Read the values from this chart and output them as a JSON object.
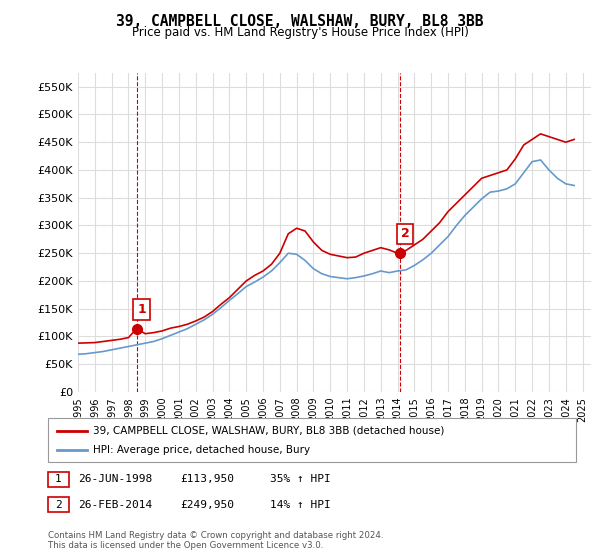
{
  "title": "39, CAMPBELL CLOSE, WALSHAW, BURY, BL8 3BB",
  "subtitle": "Price paid vs. HM Land Registry's House Price Index (HPI)",
  "legend_line1": "39, CAMPBELL CLOSE, WALSHAW, BURY, BL8 3BB (detached house)",
  "legend_line2": "HPI: Average price, detached house, Bury",
  "sale1_label": "1",
  "sale1_date": "26-JUN-1998",
  "sale1_price": "£113,950",
  "sale1_hpi": "35% ↑ HPI",
  "sale2_label": "2",
  "sale2_date": "26-FEB-2014",
  "sale2_price": "£249,950",
  "sale2_hpi": "14% ↑ HPI",
  "footnote": "Contains HM Land Registry data © Crown copyright and database right 2024.\nThis data is licensed under the Open Government Licence v3.0.",
  "red_color": "#cc0000",
  "blue_color": "#6699cc",
  "dashed_red": "#cc0000",
  "background_color": "#ffffff",
  "grid_color": "#dddddd",
  "ylim": [
    0,
    575000
  ],
  "yticks": [
    0,
    50000,
    100000,
    150000,
    200000,
    250000,
    300000,
    350000,
    400000,
    450000,
    500000,
    550000
  ],
  "ytick_labels": [
    "£0",
    "£50K",
    "£100K",
    "£150K",
    "£200K",
    "£250K",
    "£300K",
    "£350K",
    "£400K",
    "£450K",
    "£500K",
    "£550K"
  ],
  "xticks": [
    1995,
    1996,
    1997,
    1998,
    1999,
    2000,
    2001,
    2002,
    2003,
    2004,
    2005,
    2006,
    2007,
    2008,
    2009,
    2010,
    2011,
    2012,
    2013,
    2014,
    2015,
    2016,
    2017,
    2018,
    2019,
    2020,
    2021,
    2022,
    2023,
    2024,
    2025
  ],
  "sale1_x": 1998.48,
  "sale1_y": 113950,
  "sale2_x": 2014.15,
  "sale2_y": 249950,
  "red_line_x": [
    1995,
    1995.5,
    1996,
    1996.5,
    1997,
    1997.5,
    1998,
    1998.48,
    1999,
    1999.5,
    2000,
    2000.5,
    2001,
    2001.5,
    2002,
    2002.5,
    2003,
    2003.5,
    2004,
    2004.5,
    2005,
    2005.5,
    2006,
    2006.5,
    2007,
    2007.5,
    2008,
    2008.5,
    2009,
    2009.5,
    2010,
    2010.5,
    2011,
    2011.5,
    2012,
    2012.5,
    2013,
    2013.5,
    2014,
    2014.15,
    2014.5,
    2015,
    2015.5,
    2016,
    2016.5,
    2017,
    2017.5,
    2018,
    2018.5,
    2019,
    2019.5,
    2020,
    2020.5,
    2021,
    2021.5,
    2022,
    2022.5,
    2023,
    2023.5,
    2024,
    2024.5
  ],
  "red_line_y": [
    88000,
    88500,
    89000,
    91000,
    93000,
    95000,
    98000,
    113950,
    105000,
    107000,
    110000,
    115000,
    118000,
    122000,
    128000,
    135000,
    145000,
    158000,
    170000,
    185000,
    200000,
    210000,
    218000,
    230000,
    250000,
    285000,
    295000,
    290000,
    270000,
    255000,
    248000,
    245000,
    242000,
    243000,
    250000,
    255000,
    260000,
    256000,
    249950,
    249950,
    255000,
    265000,
    275000,
    290000,
    305000,
    325000,
    340000,
    355000,
    370000,
    385000,
    390000,
    395000,
    400000,
    420000,
    445000,
    455000,
    465000,
    460000,
    455000,
    450000,
    455000
  ],
  "blue_line_x": [
    1995,
    1995.5,
    1996,
    1996.5,
    1997,
    1997.5,
    1998,
    1998.5,
    1999,
    1999.5,
    2000,
    2000.5,
    2001,
    2001.5,
    2002,
    2002.5,
    2003,
    2003.5,
    2004,
    2004.5,
    2005,
    2005.5,
    2006,
    2006.5,
    2007,
    2007.5,
    2008,
    2008.5,
    2009,
    2009.5,
    2010,
    2010.5,
    2011,
    2011.5,
    2012,
    2012.5,
    2013,
    2013.5,
    2014,
    2014.5,
    2015,
    2015.5,
    2016,
    2016.5,
    2017,
    2017.5,
    2018,
    2018.5,
    2019,
    2019.5,
    2020,
    2020.5,
    2021,
    2021.5,
    2022,
    2022.5,
    2023,
    2023.5,
    2024,
    2024.5
  ],
  "blue_line_y": [
    68000,
    69000,
    71000,
    73000,
    76000,
    79000,
    82000,
    85000,
    88000,
    91000,
    96000,
    102000,
    108000,
    114000,
    122000,
    130000,
    140000,
    152000,
    165000,
    177000,
    190000,
    198000,
    207000,
    218000,
    233000,
    250000,
    248000,
    237000,
    222000,
    213000,
    208000,
    206000,
    204000,
    206000,
    209000,
    213000,
    218000,
    215000,
    218000,
    220000,
    228000,
    238000,
    250000,
    265000,
    280000,
    300000,
    318000,
    333000,
    348000,
    360000,
    362000,
    366000,
    375000,
    395000,
    415000,
    418000,
    400000,
    385000,
    375000,
    372000
  ]
}
